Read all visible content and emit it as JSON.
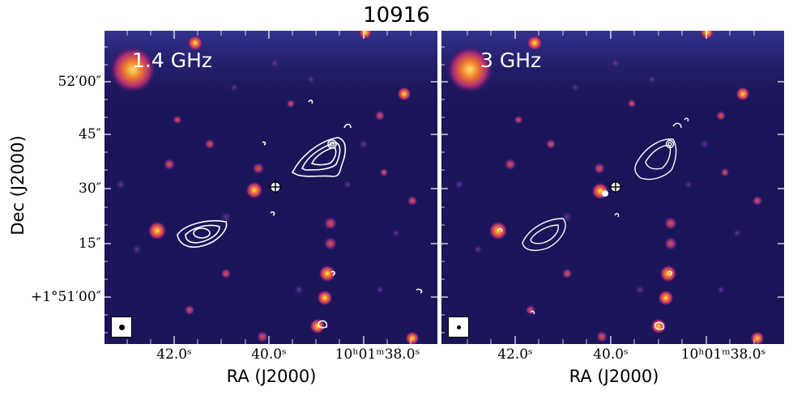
{
  "figure_title": "10916",
  "panels": [
    {
      "label": "1.4 GHz"
    },
    {
      "label": "3 GHz"
    }
  ],
  "axes": {
    "y_label": "Dec (J2000)",
    "x_label": "RA (J2000)",
    "y_ticks": [
      "52′00″",
      "45″",
      "30″",
      "15″",
      "+1°51′00″"
    ],
    "x_ticks": [
      "42.0ˢ",
      "40.0ˢ",
      "10ʰ01ᵐ38.0ˢ"
    ]
  },
  "colors": {
    "background": "#1a1458",
    "contour": "#ffffff",
    "source_hot": "#ffd25a",
    "source_mid": "#e8552a",
    "source_cool": "#7a2f9a"
  }
}
